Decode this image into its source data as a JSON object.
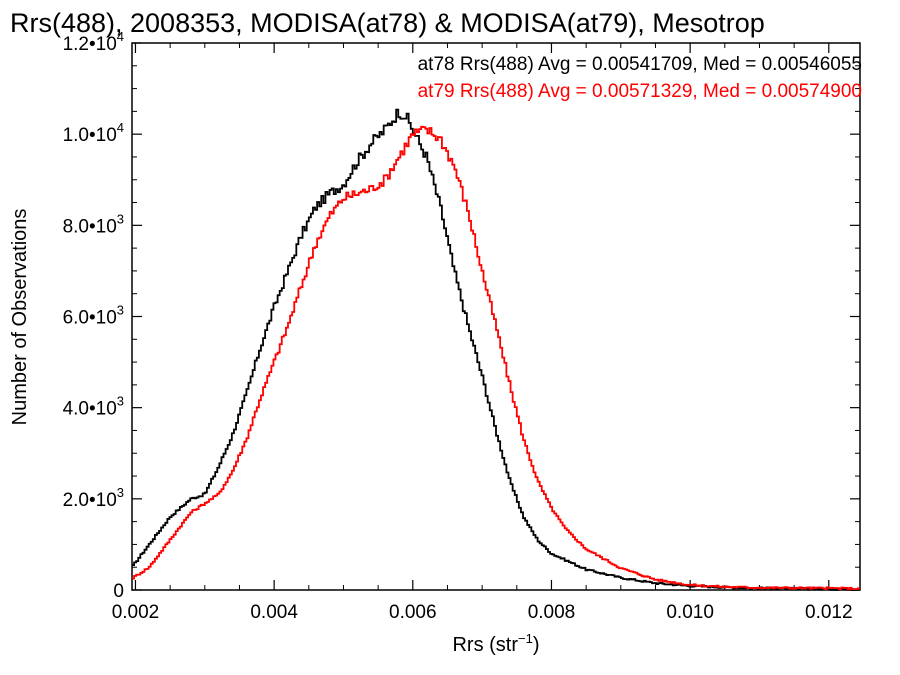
{
  "chart_data": {
    "type": "line",
    "title": "Rrs(488), 2008353, MODISA(at78) & MODISA(at79), Mesotrop",
    "xlabel": "Rrs (str",
    "xlabel_sup": "−1",
    "xlabel_close": ")",
    "ylabel": "Number of Observations",
    "xlim": [
      0.00195,
      0.01245
    ],
    "ylim": [
      0,
      12000
    ],
    "x_ticks": [
      {
        "value": 0.002,
        "label": "0.002"
      },
      {
        "value": 0.004,
        "label": "0.004"
      },
      {
        "value": 0.006,
        "label": "0.006"
      },
      {
        "value": 0.008,
        "label": "0.008"
      },
      {
        "value": 0.01,
        "label": "0.010"
      },
      {
        "value": 0.012,
        "label": "0.012"
      }
    ],
    "y_ticks": [
      {
        "value": 0,
        "label": "0",
        "exp": ""
      },
      {
        "value": 2000,
        "label": "2.0•10",
        "exp": "3"
      },
      {
        "value": 4000,
        "label": "4.0•10",
        "exp": "3"
      },
      {
        "value": 6000,
        "label": "6.0•10",
        "exp": "3"
      },
      {
        "value": 8000,
        "label": "8.0•10",
        "exp": "3"
      },
      {
        "value": 10000,
        "label": "1.0•10",
        "exp": "4"
      },
      {
        "value": 12000,
        "label": "1.2•10",
        "exp": "4"
      }
    ],
    "series": [
      {
        "name": "at78 Rrs(488) Avg = 0.00541709, Med = 0.00546055",
        "color": "#000000",
        "x": [
          0.00195,
          0.0022,
          0.0025,
          0.0028,
          0.003,
          0.0032,
          0.0034,
          0.0036,
          0.0038,
          0.004,
          0.0042,
          0.0044,
          0.0046,
          0.0048,
          0.005,
          0.0052,
          0.0054,
          0.0056,
          0.0058,
          0.0059,
          0.006,
          0.0062,
          0.0064,
          0.0066,
          0.0068,
          0.007,
          0.0072,
          0.0074,
          0.0076,
          0.0078,
          0.008,
          0.0085,
          0.009,
          0.0095,
          0.01,
          0.0105,
          0.011,
          0.0115,
          0.012,
          0.01245
        ],
        "y": [
          500,
          1000,
          1600,
          2000,
          2100,
          2700,
          3400,
          4300,
          5300,
          6200,
          7000,
          7800,
          8400,
          8700,
          8900,
          9400,
          9800,
          10100,
          10500,
          10400,
          10100,
          9500,
          8400,
          7000,
          5800,
          4700,
          3500,
          2400,
          1600,
          1100,
          800,
          450,
          270,
          150,
          90,
          60,
          40,
          30,
          20,
          15
        ]
      },
      {
        "name": "at79 Rrs(488) Avg = 0.00571329, Med = 0.00574900",
        "color": "#ff0000",
        "x": [
          0.00195,
          0.0022,
          0.0025,
          0.0028,
          0.003,
          0.0032,
          0.0034,
          0.0036,
          0.0038,
          0.004,
          0.0042,
          0.0044,
          0.0046,
          0.0048,
          0.005,
          0.0052,
          0.0054,
          0.0056,
          0.0058,
          0.006,
          0.0062,
          0.0064,
          0.0066,
          0.0068,
          0.007,
          0.0072,
          0.0074,
          0.0076,
          0.0078,
          0.008,
          0.0082,
          0.0085,
          0.009,
          0.0095,
          0.01,
          0.0105,
          0.011,
          0.0115,
          0.012,
          0.01245
        ],
        "y": [
          250,
          500,
          1100,
          1700,
          1900,
          2100,
          2600,
          3300,
          4200,
          5000,
          5800,
          6700,
          7600,
          8200,
          8600,
          8700,
          8800,
          9000,
          9500,
          10000,
          10100,
          9900,
          9300,
          8300,
          7000,
          5800,
          4500,
          3300,
          2400,
          1800,
          1350,
          900,
          480,
          230,
          110,
          70,
          50,
          45,
          40,
          30
        ]
      }
    ],
    "legend_placement": "top-right"
  }
}
